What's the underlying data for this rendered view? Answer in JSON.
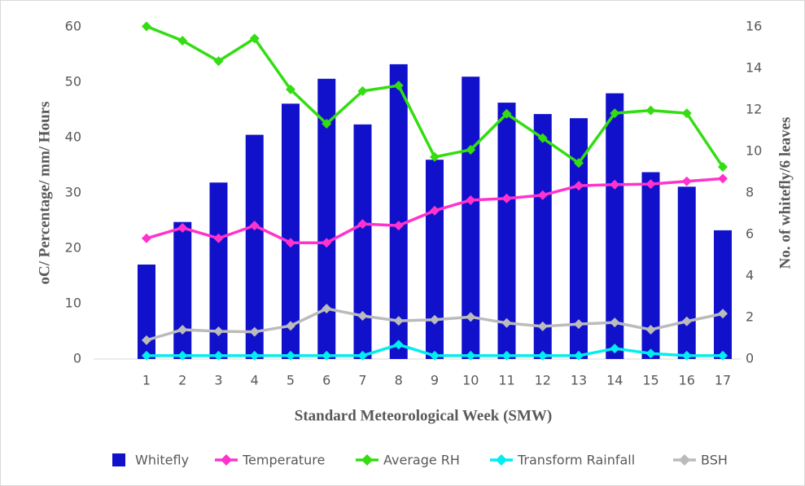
{
  "chart_data": {
    "type": "bar",
    "x_label": "Standard Meteorological Week (SMW)",
    "y_label": "oC/ Percentage/ mm/ Hours",
    "y2_label": "No. of whitefly/6 leaves",
    "categories": [
      "1",
      "2",
      "3",
      "4",
      "5",
      "6",
      "7",
      "8",
      "9",
      "10",
      "11",
      "12",
      "13",
      "14",
      "15",
      "16",
      "17"
    ],
    "ylim": [
      0,
      60
    ],
    "yticks": [
      0,
      10,
      20,
      30,
      40,
      50,
      60
    ],
    "y2lim": [
      0,
      16
    ],
    "y2ticks": [
      0,
      2,
      4,
      6,
      8,
      10,
      12,
      14,
      16
    ],
    "series": [
      {
        "name": "Whitefly",
        "type": "bar",
        "axis": "y2",
        "color": "#1111cc",
        "values": [
          4.55,
          6.6,
          8.5,
          10.8,
          12.3,
          13.5,
          11.3,
          14.2,
          9.6,
          13.6,
          12.35,
          11.8,
          11.6,
          12.8,
          9.0,
          8.3,
          6.2
        ]
      },
      {
        "name": "Temperature",
        "type": "line",
        "color": "#ff33cc",
        "values": [
          21.8,
          23.7,
          21.8,
          24.1,
          21.0,
          21.0,
          24.4,
          24.1,
          26.8,
          28.7,
          29.0,
          29.6,
          31.3,
          31.5,
          31.6,
          32.1,
          32.6
        ]
      },
      {
        "name": "Average RH",
        "type": "line",
        "color": "#33dd11",
        "values": [
          60.1,
          57.5,
          53.8,
          57.9,
          48.7,
          42.5,
          48.4,
          49.4,
          36.5,
          37.8,
          44.3,
          39.9,
          35.4,
          44.4,
          44.9,
          44.4,
          34.7
        ]
      },
      {
        "name": "Transform Rainfall",
        "type": "line",
        "color": "#00eeee",
        "values": [
          0.6,
          0.6,
          0.6,
          0.6,
          0.6,
          0.6,
          0.6,
          2.6,
          0.6,
          0.6,
          0.6,
          0.6,
          0.6,
          1.9,
          1.0,
          0.6,
          0.6
        ]
      },
      {
        "name": "BSH",
        "type": "line",
        "color": "#bbbbbb",
        "values": [
          3.4,
          5.3,
          5.0,
          4.9,
          6.0,
          9.1,
          7.8,
          6.9,
          7.1,
          7.6,
          6.5,
          5.9,
          6.3,
          6.6,
          5.3,
          6.8,
          8.2
        ]
      }
    ],
    "legend": "bottom"
  }
}
